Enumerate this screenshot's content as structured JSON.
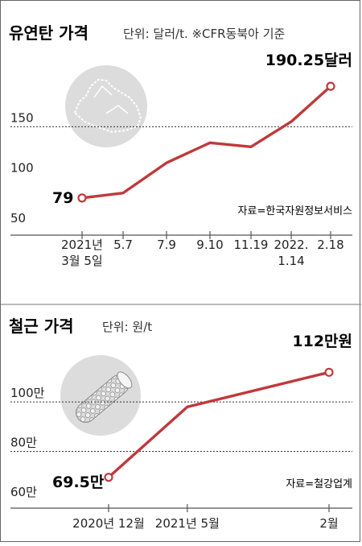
{
  "colors": {
    "line": "#c0393b",
    "axis": "#555555",
    "grid": "#333333",
    "text": "#222222",
    "icon_bg": "#dcdcdc"
  },
  "chart_data": [
    {
      "type": "line",
      "title": "유연탄 가격",
      "subtitle": "단위: 달러/t. ※CFR동북아 기준",
      "x": [
        "2021년 3월 5일",
        "5.7",
        "7.9",
        "9.10",
        "11.19",
        "2022. 1.14",
        "2.18"
      ],
      "x_tick_lines": [
        [
          "2021년",
          "3월 5일"
        ],
        [
          "5.7"
        ],
        [
          "7.9"
        ],
        [
          "9.10"
        ],
        [
          "11.19"
        ],
        [
          "2022.",
          "1.14"
        ],
        [
          "2.18"
        ]
      ],
      "x_tick_positions": [
        0,
        1,
        2,
        3,
        4,
        5,
        6
      ],
      "series": [
        {
          "values": [
            79,
            84,
            114,
            134,
            130,
            155,
            190.25
          ]
        }
      ],
      "y_ticks": [
        50,
        100,
        150
      ],
      "y_tick_labels": [
        "50",
        "100",
        "150"
      ],
      "ylim": [
        42,
        200
      ],
      "grid": "dashed at 150",
      "icon": "coal-icon",
      "annotations": {
        "start": "79",
        "end": "190.25달러",
        "source": "자료=한국자원정보서비스"
      }
    },
    {
      "type": "line",
      "title": "철근 가격",
      "subtitle": "단위: 원/t",
      "x": [
        "2020년 12월",
        "2021년 5월",
        "2월"
      ],
      "x_tick_lines": [
        [
          "2020년 12월"
        ],
        [
          "2021년 5월"
        ],
        [
          "2월"
        ]
      ],
      "x_tick_positions": [
        0,
        5,
        14
      ],
      "series": [
        {
          "values": [
            69.5,
            98,
            112
          ],
          "positions": [
            0,
            5,
            14
          ]
        }
      ],
      "y_ticks": [
        60,
        80,
        100
      ],
      "y_tick_labels": [
        "60만",
        "80만",
        "100만"
      ],
      "ylim": [
        57,
        117
      ],
      "grid": "dashed at 100 and 80",
      "icon": "rebar-icon",
      "annotations": {
        "start": "69.5만",
        "end": "112만원",
        "source": "자료=철강업계"
      }
    }
  ]
}
